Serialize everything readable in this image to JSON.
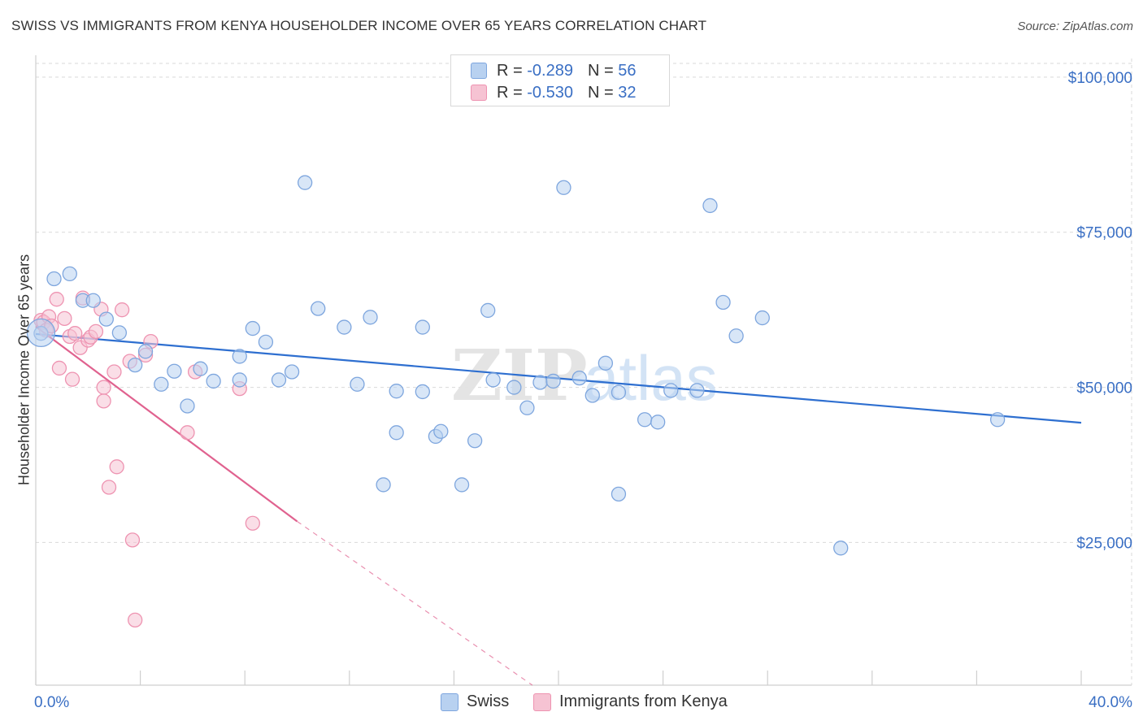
{
  "title": "SWISS VS IMMIGRANTS FROM KENYA HOUSEHOLDER INCOME OVER 65 YEARS CORRELATION CHART",
  "source": "Source: ZipAtlas.com",
  "watermark": {
    "zip": "ZIP",
    "atlas": "atlas"
  },
  "legend": {
    "swiss": {
      "r_label": "R =",
      "r_value": "-0.289",
      "n_label": "N =",
      "n_value": "56"
    },
    "kenya": {
      "r_label": "R =",
      "r_value": "-0.530",
      "n_label": "N =",
      "n_value": "32"
    }
  },
  "bottom_legend": {
    "swiss": "Swiss",
    "kenya": "Immigrants from Kenya"
  },
  "colors": {
    "swiss_fill": "#b8d1f0",
    "swiss_stroke": "#7ea6de",
    "swiss_line": "#2e6fd0",
    "kenya_fill": "#f6c3d3",
    "kenya_stroke": "#ee93b1",
    "kenya_line": "#e0628f",
    "tick_label": "#3a6fc4",
    "grid": "#d9d9d9"
  },
  "chart_data": {
    "type": "scatter",
    "title": "SWISS VS IMMIGRANTS FROM KENYA HOUSEHOLDER INCOME OVER 65 YEARS CORRELATION CHART",
    "xlabel": "",
    "ylabel": "Householder Income Over 65 years",
    "xlim": [
      0,
      40
    ],
    "ylim": [
      2000,
      103000
    ],
    "x_tick_labels": [
      {
        "value": 0,
        "label": "0.0%"
      },
      {
        "value": 40,
        "label": "40.0%"
      }
    ],
    "y_ticks": [
      {
        "value": 25000,
        "label": "$25,000"
      },
      {
        "value": 50000,
        "label": "$50,000"
      },
      {
        "value": 75000,
        "label": "$75,000"
      },
      {
        "value": 100000,
        "label": "$100,000"
      }
    ],
    "grid": true,
    "series": [
      {
        "name": "Swiss",
        "points": [
          [
            0.2,
            58700
          ],
          [
            0.7,
            67500
          ],
          [
            1.3,
            68300
          ],
          [
            1.8,
            64000
          ],
          [
            2.2,
            64000
          ],
          [
            2.7,
            61000
          ],
          [
            3.2,
            58800
          ],
          [
            3.8,
            53600
          ],
          [
            4.2,
            55800
          ],
          [
            4.8,
            50500
          ],
          [
            5.3,
            52600
          ],
          [
            5.8,
            47000
          ],
          [
            6.3,
            53000
          ],
          [
            6.8,
            51000
          ],
          [
            7.8,
            51200
          ],
          [
            7.8,
            55000
          ],
          [
            8.3,
            59500
          ],
          [
            8.8,
            57300
          ],
          [
            9.3,
            51200
          ],
          [
            9.8,
            52500
          ],
          [
            10.3,
            83000
          ],
          [
            10.8,
            62700
          ],
          [
            11.8,
            59700
          ],
          [
            12.3,
            50500
          ],
          [
            12.8,
            61300
          ],
          [
            13.3,
            34300
          ],
          [
            13.8,
            49400
          ],
          [
            13.8,
            42700
          ],
          [
            14.8,
            59700
          ],
          [
            14.8,
            49300
          ],
          [
            15.3,
            42100
          ],
          [
            15.5,
            42900
          ],
          [
            16.3,
            34300
          ],
          [
            16.8,
            41400
          ],
          [
            17.3,
            62400
          ],
          [
            17.5,
            51200
          ],
          [
            18.3,
            50000
          ],
          [
            18.8,
            46700
          ],
          [
            19.3,
            50800
          ],
          [
            19.8,
            51000
          ],
          [
            20.2,
            82200
          ],
          [
            20.8,
            51500
          ],
          [
            21.3,
            48700
          ],
          [
            21.8,
            53900
          ],
          [
            22.3,
            32800
          ],
          [
            22.3,
            49200
          ],
          [
            23.3,
            44800
          ],
          [
            23.8,
            44400
          ],
          [
            24.3,
            49500
          ],
          [
            25.3,
            49500
          ],
          [
            25.8,
            79300
          ],
          [
            26.3,
            63700
          ],
          [
            26.8,
            58300
          ],
          [
            27.8,
            61200
          ],
          [
            30.8,
            24100
          ],
          [
            36.8,
            44800
          ]
        ]
      },
      {
        "name": "Immigrants from Kenya",
        "points": [
          [
            0.2,
            60800
          ],
          [
            0.3,
            60500
          ],
          [
            0.4,
            59200
          ],
          [
            0.5,
            61400
          ],
          [
            0.6,
            59900
          ],
          [
            0.8,
            64200
          ],
          [
            0.9,
            53100
          ],
          [
            1.1,
            61100
          ],
          [
            1.3,
            58200
          ],
          [
            1.4,
            51300
          ],
          [
            1.5,
            58700
          ],
          [
            1.7,
            56400
          ],
          [
            1.8,
            64400
          ],
          [
            2.0,
            57600
          ],
          [
            2.1,
            58100
          ],
          [
            2.3,
            59000
          ],
          [
            2.5,
            62600
          ],
          [
            2.6,
            47800
          ],
          [
            2.6,
            50000
          ],
          [
            2.8,
            33900
          ],
          [
            3.0,
            52500
          ],
          [
            3.1,
            37200
          ],
          [
            3.3,
            62500
          ],
          [
            3.6,
            54200
          ],
          [
            3.7,
            25400
          ],
          [
            3.8,
            12500
          ],
          [
            4.2,
            55200
          ],
          [
            4.4,
            57400
          ],
          [
            5.8,
            42700
          ],
          [
            6.1,
            52500
          ],
          [
            7.8,
            49800
          ],
          [
            8.3,
            28100
          ]
        ]
      }
    ],
    "trendlines": [
      {
        "name": "Swiss",
        "x": [
          0,
          40
        ],
        "y": [
          58600,
          44300
        ]
      },
      {
        "name": "Immigrants from Kenya",
        "x": [
          0,
          10
        ],
        "y": [
          59800,
          28400
        ],
        "dashed_extension": {
          "x": [
            10,
            19
          ],
          "y": [
            28400,
            2000
          ]
        }
      }
    ]
  }
}
